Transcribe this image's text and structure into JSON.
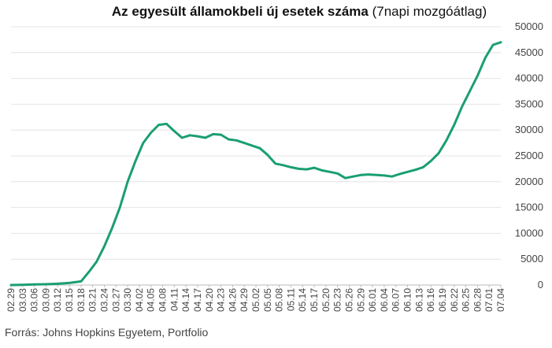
{
  "chart_data": {
    "type": "line",
    "title": "Az egyesült államokbeli új esetek száma",
    "subtitle": "(7napi mozgóátlag)",
    "source": "Forrás: Johns Hopkins Egyetem, Portfolio",
    "xlabel": "",
    "ylabel": "",
    "ylim": [
      0,
      50000
    ],
    "yticks": [
      0,
      5000,
      10000,
      15000,
      20000,
      25000,
      30000,
      35000,
      40000,
      45000,
      50000
    ],
    "grid": true,
    "x_tick_labels": [
      "02.29",
      "03.03",
      "03.06",
      "03.09",
      "03.12",
      "03.15",
      "03.18",
      "03.21",
      "03.24",
      "03.27",
      "03.30",
      "04.02",
      "04.05",
      "04.08",
      "04.11",
      "04.14",
      "04.17",
      "04.20",
      "04.23",
      "04.26",
      "04.29",
      "05.02",
      "05.05",
      "05.08",
      "05.11",
      "05.14",
      "05.17",
      "05.20",
      "05.23",
      "05.26",
      "05.29",
      "06.01",
      "06.04",
      "06.07",
      "06.10",
      "06.13",
      "06.16",
      "06.19",
      "06.22",
      "06.25",
      "06.28",
      "07.01",
      "07.04"
    ],
    "series": [
      {
        "color": "#1a9e74",
        "x": [
          "02.29",
          "03.03",
          "03.06",
          "03.09",
          "03.12",
          "03.15",
          "03.18",
          "03.20",
          "03.22",
          "03.24",
          "03.26",
          "03.28",
          "03.30",
          "04.01",
          "04.03",
          "04.05",
          "04.07",
          "04.09",
          "04.11",
          "04.13",
          "04.15",
          "04.17",
          "04.19",
          "04.21",
          "04.23",
          "04.25",
          "04.27",
          "04.29",
          "05.01",
          "05.03",
          "05.05",
          "05.07",
          "05.09",
          "05.11",
          "05.13",
          "05.15",
          "05.17",
          "05.19",
          "05.21",
          "05.23",
          "05.25",
          "05.27",
          "05.29",
          "05.31",
          "06.02",
          "06.04",
          "06.06",
          "06.08",
          "06.10",
          "06.12",
          "06.14",
          "06.16",
          "06.18",
          "06.20",
          "06.22",
          "06.24",
          "06.26",
          "06.28",
          "06.30",
          "07.02",
          "07.04"
        ],
        "values": [
          0,
          50,
          100,
          150,
          250,
          400,
          700,
          2500,
          4500,
          7500,
          11000,
          15000,
          20000,
          24000,
          27500,
          29500,
          31000,
          31200,
          29800,
          28500,
          29000,
          28800,
          28500,
          29200,
          29100,
          28200,
          28000,
          27500,
          27000,
          26500,
          25200,
          23500,
          23200,
          22800,
          22500,
          22400,
          22700,
          22200,
          21900,
          21600,
          20700,
          21000,
          21300,
          21400,
          21300,
          21200,
          21000,
          21500,
          21900,
          22300,
          22800,
          24000,
          25500,
          28000,
          31000,
          34500,
          37500,
          40500,
          44000,
          46500,
          47000
        ]
      }
    ]
  }
}
